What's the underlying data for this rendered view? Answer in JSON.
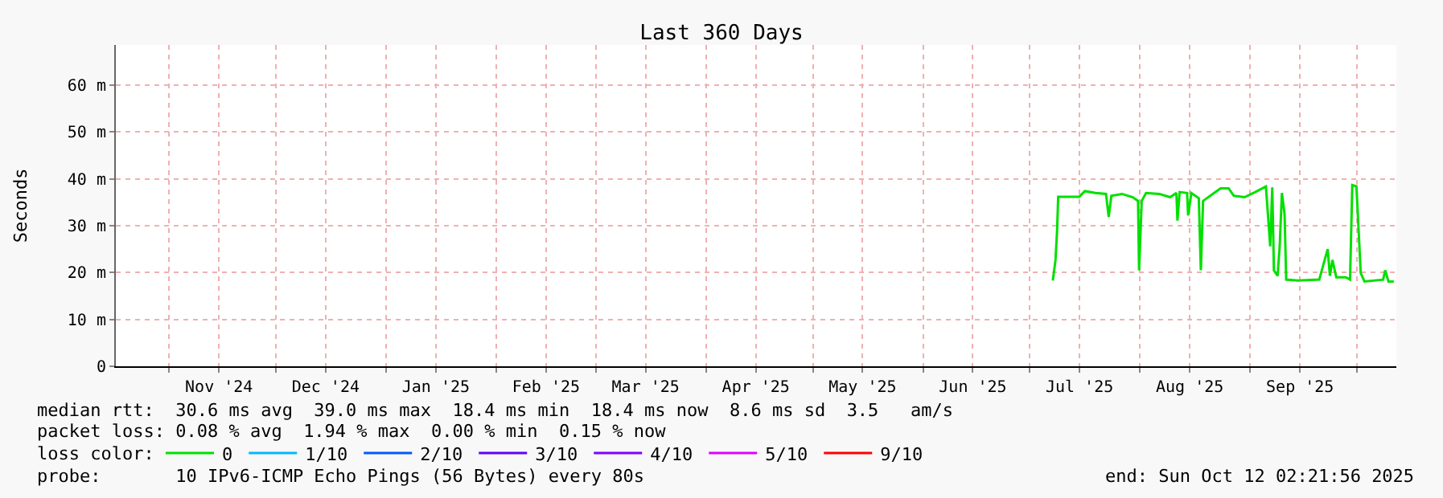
{
  "chart_data": {
    "type": "line",
    "title": "Last 360 Days",
    "ylabel": "Seconds",
    "x": [
      "2025-07-07T12:00",
      "2025-07-08T06:00",
      "2025-07-08T17:00",
      "2025-07-09T00:00",
      "2025-07-14T23:00",
      "2025-07-16T12:00",
      "2025-07-19T12:00",
      "2025-07-22T11:00",
      "2025-07-23T05:00",
      "2025-07-23T23:00",
      "2025-07-26T23:00",
      "2025-07-29T23:00",
      "2025-07-31T11:00",
      "2025-07-31T18:00",
      "2025-08-01T12:00",
      "2025-08-02T17:00",
      "2025-08-06T11:00",
      "2025-08-09T11:00",
      "2025-08-11T06:00",
      "2025-08-11T13:00",
      "2025-08-12T04:00",
      "2025-08-14T06:00",
      "2025-08-14T13:00",
      "2025-08-15T11:00",
      "2025-08-17T13:00",
      "2025-08-18T03:00",
      "2025-08-18T18:00",
      "2025-08-21T11:00",
      "2025-08-23T16:00",
      "2025-08-25T22:00",
      "2025-08-27T10:00",
      "2025-08-30T10:00",
      "2025-09-02T10:00",
      "2025-09-05T10:00",
      "2025-09-06T15:00",
      "2025-09-07T05:00",
      "2025-09-07T16:00",
      "2025-09-08T17:00",
      "2025-09-09T07:00",
      "2025-09-09T22:00",
      "2025-09-10T16:00",
      "2025-09-11T03:00",
      "2025-09-14T10:00",
      "2025-09-20T10:00",
      "2025-09-22T19:00",
      "2025-09-23T10:00",
      "2025-09-24T03:00",
      "2025-09-25T05:00",
      "2025-09-27T21:00",
      "2025-09-29T02:00",
      "2025-09-29T17:00",
      "2025-09-30T21:00",
      "2025-10-02T02:00",
      "2025-10-03T03:00",
      "2025-10-08T09:00",
      "2025-10-08T23:00",
      "2025-10-09T21:00",
      "2025-10-11T09:00"
    ],
    "series": [
      {
        "name": "0",
        "color": "#00e000",
        "values": [
          18.3,
          22.7,
          29.2,
          36.2,
          36.2,
          37.4,
          37.0,
          36.8,
          31.9,
          36.4,
          36.8,
          36.1,
          35.3,
          20.5,
          35.3,
          37.0,
          36.8,
          36.1,
          37.0,
          31.1,
          37.2,
          37.0,
          32.2,
          37.0,
          35.9,
          20.5,
          35.3,
          36.8,
          38.0,
          38.0,
          36.4,
          36.1,
          37.2,
          38.4,
          25.6,
          38.2,
          20.5,
          19.3,
          25.6,
          37.0,
          32.5,
          18.5,
          18.3,
          18.5,
          25.0,
          19.3,
          22.7,
          19.0,
          19.0,
          18.5,
          38.7,
          38.4,
          19.9,
          18.1,
          18.5,
          20.5,
          18.1,
          18.1
        ]
      },
      {
        "name": "1/10",
        "color": "#00b8ff",
        "values": [
          null,
          null,
          null,
          null,
          null,
          null,
          null,
          null,
          null,
          null,
          null,
          null,
          null,
          null,
          null,
          null,
          null,
          null,
          null,
          null,
          null,
          null,
          null,
          null,
          null,
          null,
          null,
          null,
          null,
          null,
          null,
          null,
          null,
          null,
          null,
          null,
          null,
          null,
          null,
          null,
          null,
          null,
          null,
          null,
          null,
          null,
          null,
          null,
          null,
          null,
          null,
          null,
          null,
          null,
          null,
          null,
          null,
          null
        ]
      },
      {
        "name": "2/10",
        "color": "#0059ff",
        "values": [
          null,
          null,
          null,
          null,
          null,
          null,
          null,
          null,
          null,
          null,
          null,
          null,
          null,
          null,
          null,
          null,
          null,
          null,
          null,
          null,
          null,
          null,
          null,
          null,
          null,
          null,
          null,
          null,
          null,
          null,
          null,
          null,
          null,
          null,
          null,
          null,
          null,
          null,
          null,
          null,
          null,
          null,
          null,
          null,
          null,
          null,
          null,
          null,
          null,
          null,
          null,
          null,
          null,
          null,
          null,
          null,
          null,
          null
        ]
      },
      {
        "name": "3/10",
        "color": "#5e00ff",
        "values": [
          null,
          null,
          null,
          null,
          null,
          null,
          null,
          null,
          null,
          null,
          null,
          null,
          null,
          null,
          null,
          null,
          null,
          null,
          null,
          null,
          null,
          null,
          null,
          null,
          null,
          null,
          null,
          null,
          null,
          null,
          null,
          null,
          null,
          null,
          null,
          null,
          null,
          null,
          null,
          null,
          null,
          null,
          null,
          null,
          null,
          null,
          null,
          null,
          null,
          null,
          null,
          null,
          null,
          null,
          null,
          null,
          null,
          null
        ]
      },
      {
        "name": "4/10",
        "color": "#7e00ff",
        "values": [
          null,
          null,
          null,
          null,
          null,
          null,
          null,
          null,
          null,
          null,
          null,
          null,
          null,
          null,
          null,
          null,
          null,
          null,
          null,
          null,
          null,
          null,
          null,
          null,
          null,
          null,
          null,
          null,
          null,
          null,
          null,
          null,
          null,
          null,
          null,
          null,
          null,
          null,
          null,
          null,
          null,
          null,
          null,
          null,
          null,
          null,
          null,
          null,
          null,
          null,
          null,
          null,
          null,
          null,
          null,
          null,
          null,
          null
        ]
      },
      {
        "name": "5/10",
        "color": "#dd00ff",
        "values": [
          null,
          null,
          null,
          null,
          null,
          null,
          null,
          null,
          null,
          null,
          null,
          null,
          null,
          null,
          null,
          null,
          null,
          null,
          null,
          null,
          null,
          null,
          null,
          null,
          null,
          null,
          null,
          null,
          null,
          null,
          null,
          null,
          null,
          null,
          null,
          null,
          null,
          null,
          null,
          null,
          null,
          null,
          null,
          null,
          null,
          null,
          null,
          null,
          null,
          null,
          null,
          null,
          null,
          null,
          null,
          null,
          null,
          null
        ]
      },
      {
        "name": "9/10",
        "color": "#ff0000",
        "values": [
          null,
          null,
          null,
          null,
          null,
          null,
          null,
          null,
          null,
          null,
          null,
          null,
          null,
          null,
          null,
          null,
          null,
          null,
          null,
          null,
          null,
          null,
          null,
          null,
          null,
          null,
          null,
          null,
          null,
          null,
          null,
          null,
          null,
          null,
          null,
          null,
          null,
          null,
          null,
          null,
          null,
          null,
          null,
          null,
          null,
          null,
          null,
          null,
          null,
          null,
          null,
          null,
          null,
          null,
          null,
          null,
          null,
          null
        ]
      }
    ],
    "legend": "bottom",
    "legend_title": "loss color:",
    "xlim": [
      "2024-10-17",
      "2025-10-12T02:21"
    ],
    "xticks": [
      {
        "value": "2024-11-01",
        "label": null
      },
      {
        "value": "2024-11-15",
        "label": "Nov '24"
      },
      {
        "value": "2024-12-01",
        "label": null
      },
      {
        "value": "2024-12-15",
        "label": "Dec '24"
      },
      {
        "value": "2025-01-01",
        "label": null
      },
      {
        "value": "2025-01-15",
        "label": "Jan '25"
      },
      {
        "value": "2025-02-01",
        "label": null
      },
      {
        "value": "2025-02-15",
        "label": "Feb '25"
      },
      {
        "value": "2025-03-01",
        "label": null
      },
      {
        "value": "2025-03-15",
        "label": "Mar '25"
      },
      {
        "value": "2025-04-01",
        "label": null
      },
      {
        "value": "2025-04-15",
        "label": "Apr '25"
      },
      {
        "value": "2025-05-01",
        "label": null
      },
      {
        "value": "2025-05-15",
        "label": "May '25"
      },
      {
        "value": "2025-06-01",
        "label": null
      },
      {
        "value": "2025-06-15",
        "label": "Jun '25"
      },
      {
        "value": "2025-07-01",
        "label": null
      },
      {
        "value": "2025-07-15",
        "label": "Jul '25"
      },
      {
        "value": "2025-08-01",
        "label": null
      },
      {
        "value": "2025-08-15",
        "label": "Aug '25"
      },
      {
        "value": "2025-09-01",
        "label": null
      },
      {
        "value": "2025-09-15",
        "label": "Sep '25"
      },
      {
        "value": "2025-10-01",
        "label": null
      }
    ],
    "ylim": [
      0,
      68.6
    ],
    "yticks": [
      0,
      {
        "value": 10,
        "label": "10 m"
      },
      {
        "value": 20,
        "label": "20 m"
      },
      {
        "value": 30,
        "label": "30 m"
      },
      {
        "value": 40,
        "label": "40 m"
      },
      {
        "value": 50,
        "label": "50 m"
      },
      {
        "value": 60,
        "label": "60 m"
      }
    ],
    "grid": true,
    "marker": "none",
    "line_style": "solid",
    "annotations": [
      "median rtt:  30.6 ms avg  39.0 ms max  18.4 ms min  18.4 ms now  8.6 ms sd  3.5   am/s",
      "packet loss: 0.08 % avg  1.94 % max  0.00 % min  0.15 % now",
      "probe:       10 IPv6-ICMP Echo Pings (56 Bytes) every 80s",
      "end: Sun Oct 12 02:21:56 2025"
    ]
  }
}
